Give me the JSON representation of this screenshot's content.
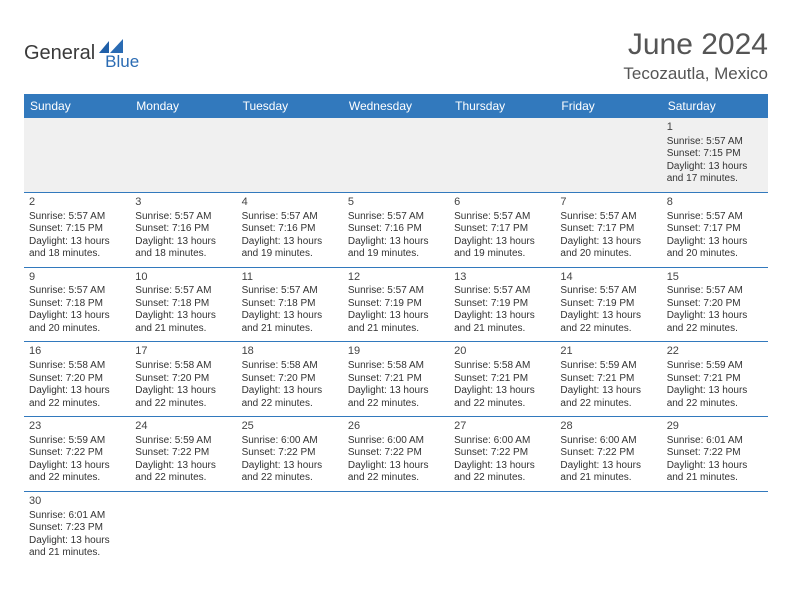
{
  "logo": {
    "part1": "General",
    "part2": "Blue"
  },
  "title": "June 2024",
  "location": "Tecozautla, Mexico",
  "colors": {
    "header_bg": "#3279bd",
    "header_text": "#ffffff",
    "rule": "#3279bd",
    "blank_bg": "#f0f0f0",
    "body_text": "#333333",
    "title_text": "#555555",
    "logo_gray": "#3a3a3a",
    "logo_blue": "#2a6bb3"
  },
  "days_of_week": [
    "Sunday",
    "Monday",
    "Tuesday",
    "Wednesday",
    "Thursday",
    "Friday",
    "Saturday"
  ],
  "month": {
    "first_weekday_index": 6,
    "num_days": 30
  },
  "cells": {
    "1": {
      "sunrise": "5:57 AM",
      "sunset": "7:15 PM",
      "daylight": "13 hours and 17 minutes."
    },
    "2": {
      "sunrise": "5:57 AM",
      "sunset": "7:15 PM",
      "daylight": "13 hours and 18 minutes."
    },
    "3": {
      "sunrise": "5:57 AM",
      "sunset": "7:16 PM",
      "daylight": "13 hours and 18 minutes."
    },
    "4": {
      "sunrise": "5:57 AM",
      "sunset": "7:16 PM",
      "daylight": "13 hours and 19 minutes."
    },
    "5": {
      "sunrise": "5:57 AM",
      "sunset": "7:16 PM",
      "daylight": "13 hours and 19 minutes."
    },
    "6": {
      "sunrise": "5:57 AM",
      "sunset": "7:17 PM",
      "daylight": "13 hours and 19 minutes."
    },
    "7": {
      "sunrise": "5:57 AM",
      "sunset": "7:17 PM",
      "daylight": "13 hours and 20 minutes."
    },
    "8": {
      "sunrise": "5:57 AM",
      "sunset": "7:17 PM",
      "daylight": "13 hours and 20 minutes."
    },
    "9": {
      "sunrise": "5:57 AM",
      "sunset": "7:18 PM",
      "daylight": "13 hours and 20 minutes."
    },
    "10": {
      "sunrise": "5:57 AM",
      "sunset": "7:18 PM",
      "daylight": "13 hours and 21 minutes."
    },
    "11": {
      "sunrise": "5:57 AM",
      "sunset": "7:18 PM",
      "daylight": "13 hours and 21 minutes."
    },
    "12": {
      "sunrise": "5:57 AM",
      "sunset": "7:19 PM",
      "daylight": "13 hours and 21 minutes."
    },
    "13": {
      "sunrise": "5:57 AM",
      "sunset": "7:19 PM",
      "daylight": "13 hours and 21 minutes."
    },
    "14": {
      "sunrise": "5:57 AM",
      "sunset": "7:19 PM",
      "daylight": "13 hours and 22 minutes."
    },
    "15": {
      "sunrise": "5:57 AM",
      "sunset": "7:20 PM",
      "daylight": "13 hours and 22 minutes."
    },
    "16": {
      "sunrise": "5:58 AM",
      "sunset": "7:20 PM",
      "daylight": "13 hours and 22 minutes."
    },
    "17": {
      "sunrise": "5:58 AM",
      "sunset": "7:20 PM",
      "daylight": "13 hours and 22 minutes."
    },
    "18": {
      "sunrise": "5:58 AM",
      "sunset": "7:20 PM",
      "daylight": "13 hours and 22 minutes."
    },
    "19": {
      "sunrise": "5:58 AM",
      "sunset": "7:21 PM",
      "daylight": "13 hours and 22 minutes."
    },
    "20": {
      "sunrise": "5:58 AM",
      "sunset": "7:21 PM",
      "daylight": "13 hours and 22 minutes."
    },
    "21": {
      "sunrise": "5:59 AM",
      "sunset": "7:21 PM",
      "daylight": "13 hours and 22 minutes."
    },
    "22": {
      "sunrise": "5:59 AM",
      "sunset": "7:21 PM",
      "daylight": "13 hours and 22 minutes."
    },
    "23": {
      "sunrise": "5:59 AM",
      "sunset": "7:22 PM",
      "daylight": "13 hours and 22 minutes."
    },
    "24": {
      "sunrise": "5:59 AM",
      "sunset": "7:22 PM",
      "daylight": "13 hours and 22 minutes."
    },
    "25": {
      "sunrise": "6:00 AM",
      "sunset": "7:22 PM",
      "daylight": "13 hours and 22 minutes."
    },
    "26": {
      "sunrise": "6:00 AM",
      "sunset": "7:22 PM",
      "daylight": "13 hours and 22 minutes."
    },
    "27": {
      "sunrise": "6:00 AM",
      "sunset": "7:22 PM",
      "daylight": "13 hours and 22 minutes."
    },
    "28": {
      "sunrise": "6:00 AM",
      "sunset": "7:22 PM",
      "daylight": "13 hours and 21 minutes."
    },
    "29": {
      "sunrise": "6:01 AM",
      "sunset": "7:22 PM",
      "daylight": "13 hours and 21 minutes."
    },
    "30": {
      "sunrise": "6:01 AM",
      "sunset": "7:23 PM",
      "daylight": "13 hours and 21 minutes."
    }
  },
  "labels": {
    "sunrise_prefix": "Sunrise: ",
    "sunset_prefix": "Sunset: ",
    "daylight_prefix": "Daylight: "
  }
}
